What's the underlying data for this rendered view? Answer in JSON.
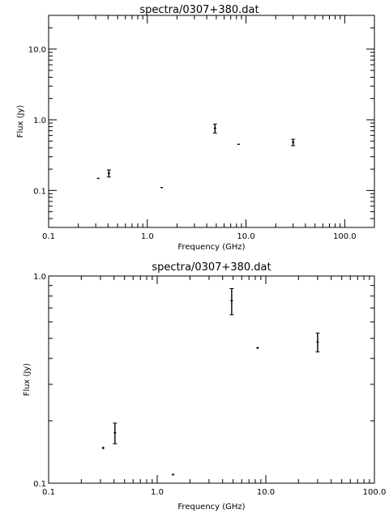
{
  "chart_data": [
    {
      "type": "scatter",
      "title": "spectra/0307+380.dat",
      "xlabel": "Frequency (GHz)",
      "ylabel": "Flux (Jy)",
      "xscale": "log",
      "yscale": "log",
      "xlim": [
        0.1,
        200
      ],
      "ylim": [
        0.03,
        30
      ],
      "xticks": [
        {
          "value": 0.1,
          "label": "0.1"
        },
        {
          "value": 1,
          "label": "1.0"
        },
        {
          "value": 10,
          "label": "10.0"
        },
        {
          "value": 100,
          "label": "100.0"
        }
      ],
      "yticks": [
        {
          "value": 0.1,
          "label": "0.1"
        },
        {
          "value": 1,
          "label": "1.0"
        },
        {
          "value": 10,
          "label": "10.0"
        }
      ],
      "points": [
        {
          "x": 0.318,
          "y": 0.148,
          "yerr": [
            0.146,
            0.15
          ]
        },
        {
          "x": 0.408,
          "y": 0.175,
          "yerr": [
            0.155,
            0.195
          ]
        },
        {
          "x": 1.4,
          "y": 0.11,
          "yerr": [
            0.109,
            0.111
          ]
        },
        {
          "x": 4.85,
          "y": 0.76,
          "yerr": [
            0.65,
            0.87
          ]
        },
        {
          "x": 8.4,
          "y": 0.45,
          "yerr": [
            0.445,
            0.455
          ]
        },
        {
          "x": 30,
          "y": 0.48,
          "yerr": [
            0.43,
            0.53
          ]
        }
      ]
    },
    {
      "type": "scatter",
      "title": "spectra/0307+380.dat",
      "xlabel": "Frequency (GHz)",
      "ylabel": "Flux (Jy)",
      "xscale": "log",
      "yscale": "log",
      "xlim": [
        0.1,
        100
      ],
      "ylim": [
        0.1,
        1.0
      ],
      "xticks": [
        {
          "value": 0.1,
          "label": "0.1"
        },
        {
          "value": 1,
          "label": "1.0"
        },
        {
          "value": 10,
          "label": "10.0"
        },
        {
          "value": 100,
          "label": "100.0"
        }
      ],
      "yticks": [
        {
          "value": 0.1,
          "label": "0.1"
        },
        {
          "value": 1,
          "label": "1.0"
        }
      ],
      "points": [
        {
          "x": 0.318,
          "y": 0.148,
          "yerr": [
            0.146,
            0.15
          ]
        },
        {
          "x": 0.408,
          "y": 0.175,
          "yerr": [
            0.155,
            0.195
          ]
        },
        {
          "x": 1.4,
          "y": 0.11,
          "yerr": [
            0.109,
            0.111
          ]
        },
        {
          "x": 4.85,
          "y": 0.76,
          "yerr": [
            0.65,
            0.87
          ]
        },
        {
          "x": 8.4,
          "y": 0.45,
          "yerr": [
            0.445,
            0.455
          ]
        },
        {
          "x": 30,
          "y": 0.48,
          "yerr": [
            0.43,
            0.53
          ]
        }
      ]
    }
  ]
}
